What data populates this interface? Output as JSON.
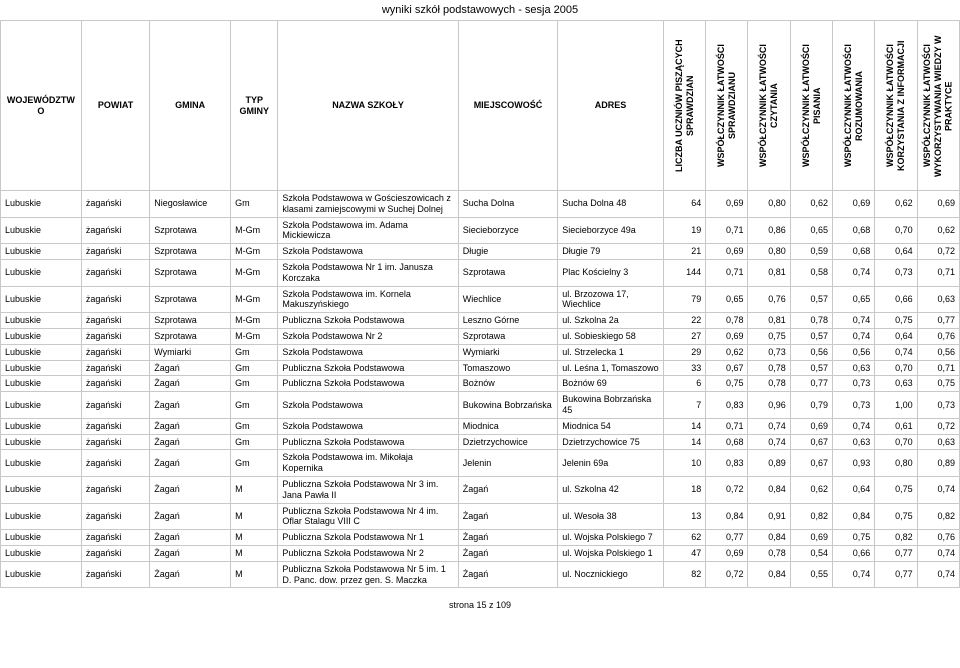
{
  "title": "wyniki szkół podstawowych - sesja 2005",
  "footer": "strona 15 z 109",
  "headers": {
    "wojewodztwo": "WOJEWÓDZTWO",
    "powiat": "POWIAT",
    "gmina": "GMINA",
    "typ": "TYP GMINY",
    "nazwa": "NAZWA SZKOŁY",
    "miejscowosc": "MIEJSCOWOŚĆ",
    "adres": "ADRES",
    "col8": "LICZBA UCZNIÓW PISZĄCYCH SPRAWDZIAN",
    "col9": "WSPÓŁCZYNNIK ŁATWOŚCI SPRAWDZIANU",
    "col10": "WSPÓŁCZYNNIK ŁATWOŚCI CZYTANIA",
    "col11": "WSPÓŁCZYNNIK ŁATWOŚCI PISANIA",
    "col12": "WSPÓŁCZYNNIK ŁATWOŚCI ROZUMOWANIA",
    "col13": "WSPÓŁCZYNNIK ŁATWOŚCI KORZYSTANIA Z INFORMACJI",
    "col14": "WSPÓŁCZYNNIK ŁATWOŚCI WYKORZYSTYWANIA WIEDZY W PRAKTYCE"
  },
  "rows": [
    {
      "woj": "Lubuskie",
      "pow": "żagański",
      "gmi": "Niegosławice",
      "typ": "Gm",
      "naz": "Szkoła Podstawowa w Gościeszowicach z klasami zamiejscowymi w Suchej Dolnej",
      "mie": "Sucha Dolna",
      "adr": "Sucha Dolna 48",
      "v": [
        "64",
        "0,69",
        "0,80",
        "0,62",
        "0,69",
        "0,62",
        "0,69"
      ]
    },
    {
      "woj": "Lubuskie",
      "pow": "żagański",
      "gmi": "Szprotawa",
      "typ": "M-Gm",
      "naz": "Szkoła Podstawowa im. Adama Mickiewicza",
      "mie": "Siecieborzyce",
      "adr": "Siecieborzyce 49a",
      "v": [
        "19",
        "0,71",
        "0,86",
        "0,65",
        "0,68",
        "0,70",
        "0,62"
      ]
    },
    {
      "woj": "Lubuskie",
      "pow": "żagański",
      "gmi": "Szprotawa",
      "typ": "M-Gm",
      "naz": "Szkoła Podstawowa",
      "mie": "Długie",
      "adr": "Długie 79",
      "v": [
        "21",
        "0,69",
        "0,80",
        "0,59",
        "0,68",
        "0,64",
        "0,72"
      ]
    },
    {
      "woj": "Lubuskie",
      "pow": "żagański",
      "gmi": "Szprotawa",
      "typ": "M-Gm",
      "naz": "Szkoła Podstawowa Nr 1 im. Janusza Korczaka",
      "mie": "Szprotawa",
      "adr": "Plac Kościelny 3",
      "v": [
        "144",
        "0,71",
        "0,81",
        "0,58",
        "0,74",
        "0,73",
        "0,71"
      ]
    },
    {
      "woj": "Lubuskie",
      "pow": "żagański",
      "gmi": "Szprotawa",
      "typ": "M-Gm",
      "naz": "Szkoła Podstawowa im. Kornela Makuszyńskiego",
      "mie": "Wiechlice",
      "adr": "ul. Brzozowa 17, Wiechlice",
      "v": [
        "79",
        "0,65",
        "0,76",
        "0,57",
        "0,65",
        "0,66",
        "0,63"
      ]
    },
    {
      "woj": "Lubuskie",
      "pow": "żagański",
      "gmi": "Szprotawa",
      "typ": "M-Gm",
      "naz": "Publiczna Szkoła Podstawowa",
      "mie": "Leszno Górne",
      "adr": "ul. Szkolna 2a",
      "v": [
        "22",
        "0,78",
        "0,81",
        "0,78",
        "0,74",
        "0,75",
        "0,77"
      ]
    },
    {
      "woj": "Lubuskie",
      "pow": "żagański",
      "gmi": "Szprotawa",
      "typ": "M-Gm",
      "naz": "Szkoła Podstawowa Nr 2",
      "mie": "Szprotawa",
      "adr": "ul. Sobieskiego 58",
      "v": [
        "27",
        "0,69",
        "0,75",
        "0,57",
        "0,74",
        "0,64",
        "0,76"
      ]
    },
    {
      "woj": "Lubuskie",
      "pow": "żagański",
      "gmi": "Wymiarki",
      "typ": "Gm",
      "naz": "Szkoła Podstawowa",
      "mie": "Wymiarki",
      "adr": "ul. Strzelecka 1",
      "v": [
        "29",
        "0,62",
        "0,73",
        "0,56",
        "0,56",
        "0,74",
        "0,56"
      ]
    },
    {
      "woj": "Lubuskie",
      "pow": "żagański",
      "gmi": "Żagań",
      "typ": "Gm",
      "naz": "Publiczna Szkoła Podstawowa",
      "mie": "Tomaszowo",
      "adr": "ul. Leśna 1, Tomaszowo",
      "v": [
        "33",
        "0,67",
        "0,78",
        "0,57",
        "0,63",
        "0,70",
        "0,71"
      ]
    },
    {
      "woj": "Lubuskie",
      "pow": "żagański",
      "gmi": "Żagań",
      "typ": "Gm",
      "naz": "Publiczna Szkoła Podstawowa",
      "mie": "Bożnów",
      "adr": "Bożnów 69",
      "v": [
        "6",
        "0,75",
        "0,78",
        "0,77",
        "0,73",
        "0,63",
        "0,75"
      ]
    },
    {
      "woj": "Lubuskie",
      "pow": "żagański",
      "gmi": "Żagań",
      "typ": "Gm",
      "naz": "Szkoła Podstawowa",
      "mie": "Bukowina Bobrzańska",
      "adr": "Bukowina Bobrzańska 45",
      "v": [
        "7",
        "0,83",
        "0,96",
        "0,79",
        "0,73",
        "1,00",
        "0,73"
      ]
    },
    {
      "woj": "Lubuskie",
      "pow": "żagański",
      "gmi": "Żagań",
      "typ": "Gm",
      "naz": "Szkoła Podstawowa",
      "mie": "Miodnica",
      "adr": "Miodnica 54",
      "v": [
        "14",
        "0,71",
        "0,74",
        "0,69",
        "0,74",
        "0,61",
        "0,72"
      ]
    },
    {
      "woj": "Lubuskie",
      "pow": "żagański",
      "gmi": "Żagań",
      "typ": "Gm",
      "naz": "Publiczna Szkoła  Podstawowa",
      "mie": "Dzietrzychowice",
      "adr": "Dzietrzychowice 75",
      "v": [
        "14",
        "0,68",
        "0,74",
        "0,67",
        "0,63",
        "0,70",
        "0,63"
      ]
    },
    {
      "woj": "Lubuskie",
      "pow": "żagański",
      "gmi": "Żagań",
      "typ": "Gm",
      "naz": "Szkoła Podstawowa im. Mikołaja Kopernika",
      "mie": "Jelenin",
      "adr": "Jelenin 69a",
      "v": [
        "10",
        "0,83",
        "0,89",
        "0,67",
        "0,93",
        "0,80",
        "0,89"
      ]
    },
    {
      "woj": "Lubuskie",
      "pow": "żagański",
      "gmi": "Żagań",
      "typ": "M",
      "naz": "Publiczna Szkoła Podstawowa Nr 3 im. Jana Pawła II",
      "mie": "Żagań",
      "adr": "ul. Szkolna 42",
      "v": [
        "18",
        "0,72",
        "0,84",
        "0,62",
        "0,64",
        "0,75",
        "0,74"
      ]
    },
    {
      "woj": "Lubuskie",
      "pow": "żagański",
      "gmi": "Żagań",
      "typ": "M",
      "naz": "Publiczna Szkoła Podstawowa Nr 4 im. Oflar Stalagu VIII C",
      "mie": "Żagań",
      "adr": "ul. Wesoła 38",
      "v": [
        "13",
        "0,84",
        "0,91",
        "0,82",
        "0,84",
        "0,75",
        "0,82"
      ]
    },
    {
      "woj": "Lubuskie",
      "pow": "żagański",
      "gmi": "Żagań",
      "typ": "M",
      "naz": "Publiczna Szkola Podstawowa Nr 1",
      "mie": "Żagań",
      "adr": "ul. Wojska Polskiego 7",
      "v": [
        "62",
        "0,77",
        "0,84",
        "0,69",
        "0,75",
        "0,82",
        "0,76"
      ]
    },
    {
      "woj": "Lubuskie",
      "pow": "żagański",
      "gmi": "Żagań",
      "typ": "M",
      "naz": "Publiczna Szkoła Podstawowa Nr 2",
      "mie": "Żagań",
      "adr": "ul. Wojska Polskiego 1",
      "v": [
        "47",
        "0,69",
        "0,78",
        "0,54",
        "0,66",
        "0,77",
        "0,74"
      ]
    },
    {
      "woj": "Lubuskie",
      "pow": "żagański",
      "gmi": "Żagań",
      "typ": "M",
      "naz": "Publiczna Szkoła Podstawowa Nr 5 im. 1 D. Panc. dow. przez gen. S. Maczka",
      "mie": "Żagań",
      "adr": "ul. Nocznickiego",
      "v": [
        "82",
        "0,72",
        "0,84",
        "0,55",
        "0,74",
        "0,77",
        "0,74"
      ]
    }
  ]
}
